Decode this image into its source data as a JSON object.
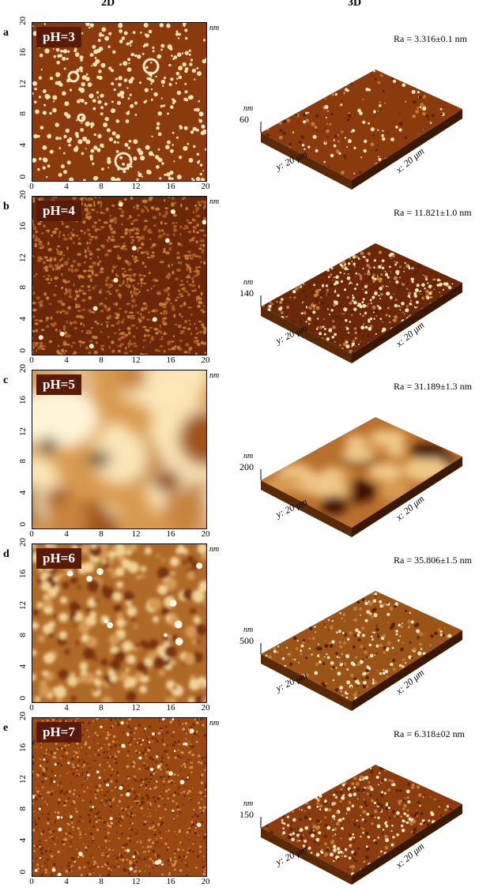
{
  "headers": {
    "left": "2D",
    "right": "3D"
  },
  "y_ticks": [
    "0",
    "4",
    "8",
    "12",
    "16",
    "20"
  ],
  "x_ticks": [
    "0",
    "4",
    "8",
    "12",
    "16",
    "20"
  ],
  "unit_nm": "nm",
  "x_axis_3d": "x: 20 μm",
  "y_axis_3d": "y: 20 μm",
  "panels": [
    {
      "letter": "a",
      "ph": "pH=3",
      "ra": "Ra = 3.316±0.1 nm",
      "z": "60",
      "style": "dots"
    },
    {
      "letter": "b",
      "ph": "pH=4",
      "ra": "Ra = 11.821±1.0 nm",
      "z": "140",
      "style": "grain"
    },
    {
      "letter": "c",
      "ph": "pH=5",
      "ra": "Ra = 31.189±1.3 nm",
      "z": "200",
      "style": "blur"
    },
    {
      "letter": "d",
      "ph": "pH=6",
      "ra": "Ra = 35.806±1.5 nm",
      "z": "500",
      "style": "mottle"
    },
    {
      "letter": "e",
      "ph": "pH=7",
      "ra": "Ra = 6.318±02 nm",
      "z": "150",
      "style": "speckle"
    }
  ],
  "colors": {
    "dark": "#4a1500",
    "mid": "#a0521a",
    "light": "#f4d8a0",
    "label_bg": "#5a1a0a"
  }
}
